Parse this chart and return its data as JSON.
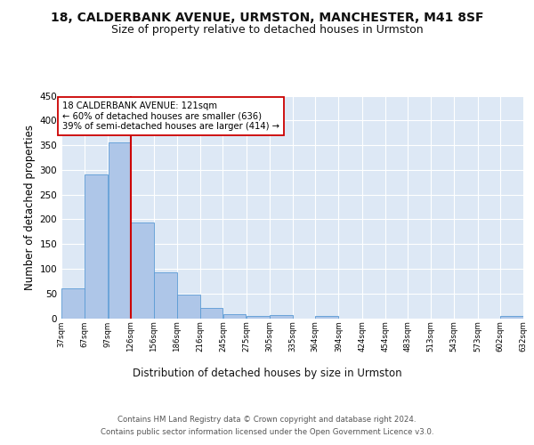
{
  "title1": "18, CALDERBANK AVENUE, URMSTON, MANCHESTER, M41 8SF",
  "title2": "Size of property relative to detached houses in Urmston",
  "xlabel": "Distribution of detached houses by size in Urmston",
  "ylabel": "Number of detached properties",
  "footer1": "Contains HM Land Registry data © Crown copyright and database right 2024.",
  "footer2": "Contains public sector information licensed under the Open Government Licence v3.0.",
  "bins": [
    37,
    67,
    97,
    126,
    156,
    186,
    216,
    245,
    275,
    305,
    335,
    364,
    394,
    424,
    454,
    483,
    513,
    543,
    573,
    602,
    632
  ],
  "bin_labels": [
    "37sqm",
    "67sqm",
    "97sqm",
    "126sqm",
    "156sqm",
    "186sqm",
    "216sqm",
    "245sqm",
    "275sqm",
    "305sqm",
    "335sqm",
    "364sqm",
    "394sqm",
    "424sqm",
    "454sqm",
    "483sqm",
    "513sqm",
    "543sqm",
    "573sqm",
    "602sqm",
    "632sqm"
  ],
  "bar_heights": [
    60,
    290,
    355,
    193,
    93,
    47,
    20,
    9,
    5,
    6,
    0,
    5,
    0,
    0,
    0,
    0,
    0,
    0,
    0,
    5
  ],
  "bar_color": "#aec6e8",
  "bar_edge_color": "#5b9bd5",
  "property_line_x": 126,
  "property_line_color": "#cc0000",
  "annotation_text": "18 CALDERBANK AVENUE: 121sqm\n← 60% of detached houses are smaller (636)\n39% of semi-detached houses are larger (414) →",
  "annotation_box_color": "#ffffff",
  "annotation_box_edge": "#cc0000",
  "ylim": [
    0,
    450
  ],
  "yticks": [
    0,
    50,
    100,
    150,
    200,
    250,
    300,
    350,
    400,
    450
  ],
  "background_color": "#ffffff",
  "plot_bg_color": "#dde8f5",
  "grid_color": "#ffffff",
  "title1_fontsize": 10,
  "title2_fontsize": 9,
  "xlabel_fontsize": 8.5,
  "ylabel_fontsize": 8.5
}
